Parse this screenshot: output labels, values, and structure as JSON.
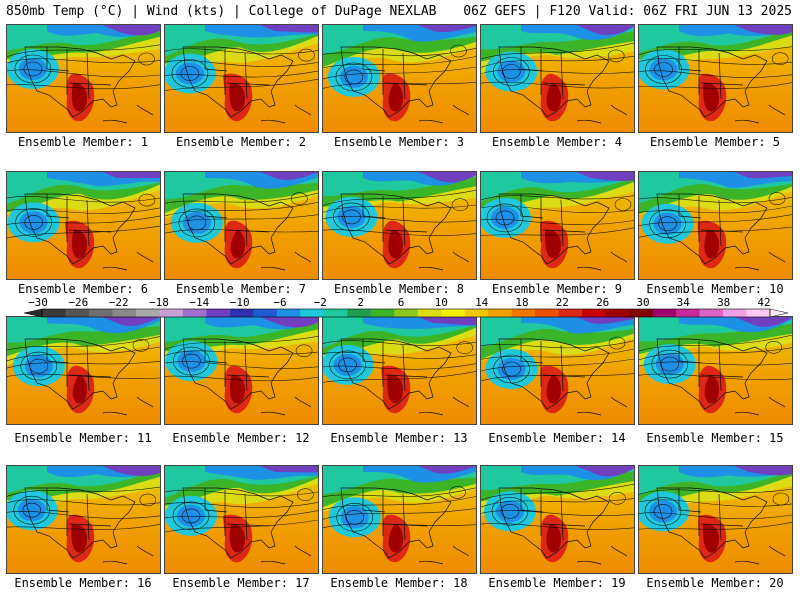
{
  "header": {
    "left": "850mb Temp (°C) | Wind (kts) | College of DuPage NEXLAB",
    "right": "06Z GEFS | F120 Valid: 06Z FRI JUN 13 2025"
  },
  "panels": [
    {
      "label": "Ensemble Member: 1"
    },
    {
      "label": "Ensemble Member: 2"
    },
    {
      "label": "Ensemble Member: 3"
    },
    {
      "label": "Ensemble Member: 4"
    },
    {
      "label": "Ensemble Member: 5"
    },
    {
      "label": "Ensemble Member: 6"
    },
    {
      "label": "Ensemble Member: 7"
    },
    {
      "label": "Ensemble Member: 8"
    },
    {
      "label": "Ensemble Member: 9"
    },
    {
      "label": "Ensemble Member: 10"
    },
    {
      "label": "Ensemble Member: 11"
    },
    {
      "label": "Ensemble Member: 12"
    },
    {
      "label": "Ensemble Member: 13"
    },
    {
      "label": "Ensemble Member: 14"
    },
    {
      "label": "Ensemble Member: 15"
    },
    {
      "label": "Ensemble Member: 16"
    },
    {
      "label": "Ensemble Member: 17"
    },
    {
      "label": "Ensemble Member: 18"
    },
    {
      "label": "Ensemble Member: 19"
    },
    {
      "label": "Ensemble Member: 20"
    }
  ],
  "colorbar": {
    "ticks": [
      "-30",
      "-26",
      "-22",
      "-18",
      "-14",
      "-10",
      "-6",
      "-2",
      "2",
      "6",
      "10",
      "14",
      "18",
      "22",
      "26",
      "30",
      "34",
      "38",
      "42"
    ],
    "colors": [
      "#3a3a3a",
      "#555555",
      "#6e6e6e",
      "#8a8a8a",
      "#a8a8a8",
      "#c8a0d8",
      "#a070d0",
      "#7040c0",
      "#3030b0",
      "#1e5ad2",
      "#1e90e6",
      "#20c8dc",
      "#20c8a0",
      "#1ea050",
      "#3cb428",
      "#8cc81e",
      "#dcdc14",
      "#f0f000",
      "#f0c800",
      "#f0a000",
      "#f07800",
      "#f05000",
      "#dc2814",
      "#c80000",
      "#a00000",
      "#820000",
      "#a0006e",
      "#c8289a",
      "#dc64c8",
      "#f0a0e6",
      "#fac8f0"
    ]
  }
}
